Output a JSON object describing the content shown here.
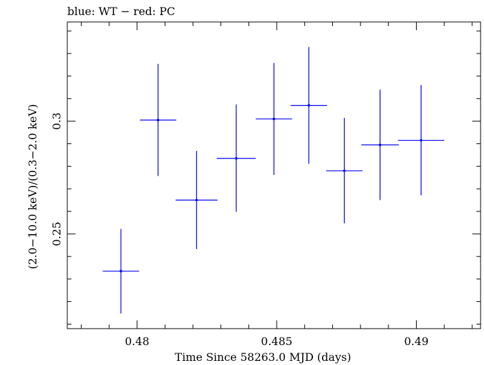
{
  "chart_data": {
    "type": "scatter",
    "title": "blue: WT − red: PC",
    "xlabel": "Time Since 58263.0 MJD (days)",
    "ylabel": "(2.0−10.0 keV)/(0.3−2.0 keV)",
    "xlim": [
      0.4775,
      0.4923
    ],
    "ylim": [
      0.208,
      0.344
    ],
    "x_ticks": [
      {
        "value": 0.48,
        "label": "0.48"
      },
      {
        "value": 0.485,
        "label": "0.485"
      },
      {
        "value": 0.49,
        "label": "0.49"
      }
    ],
    "y_ticks": [
      {
        "value": 0.25,
        "label": "0.25"
      },
      {
        "value": 0.3,
        "label": "0.3"
      }
    ],
    "grid": false,
    "colors": {
      "series": "#0000ee",
      "axes": "#000000"
    },
    "series": [
      {
        "color": "#0000ee",
        "points": [
          {
            "x": 0.47942,
            "xerr": 0.00065,
            "y": 0.2335,
            "yerr_low": 0.0188,
            "yerr_high": 0.0187
          },
          {
            "x": 0.48075,
            "xerr": 0.00065,
            "y": 0.3005,
            "yerr_low": 0.0248,
            "yerr_high": 0.0249
          },
          {
            "x": 0.48213,
            "xerr": 0.00075,
            "y": 0.265,
            "yerr_low": 0.0217,
            "yerr_high": 0.0218
          },
          {
            "x": 0.48355,
            "xerr": 0.0007,
            "y": 0.2835,
            "yerr_low": 0.0237,
            "yerr_high": 0.0239
          },
          {
            "x": 0.4849,
            "xerr": 0.00065,
            "y": 0.301,
            "yerr_low": 0.0248,
            "yerr_high": 0.0248
          },
          {
            "x": 0.48615,
            "xerr": 0.00065,
            "y": 0.307,
            "yerr_low": 0.0259,
            "yerr_high": 0.0259
          },
          {
            "x": 0.48742,
            "xerr": 0.00065,
            "y": 0.278,
            "yerr_low": 0.0233,
            "yerr_high": 0.0235
          },
          {
            "x": 0.4887,
            "xerr": 0.00067,
            "y": 0.2895,
            "yerr_low": 0.0245,
            "yerr_high": 0.0245
          },
          {
            "x": 0.49017,
            "xerr": 0.00083,
            "y": 0.2915,
            "yerr_low": 0.0244,
            "yerr_high": 0.0245
          }
        ]
      }
    ]
  }
}
